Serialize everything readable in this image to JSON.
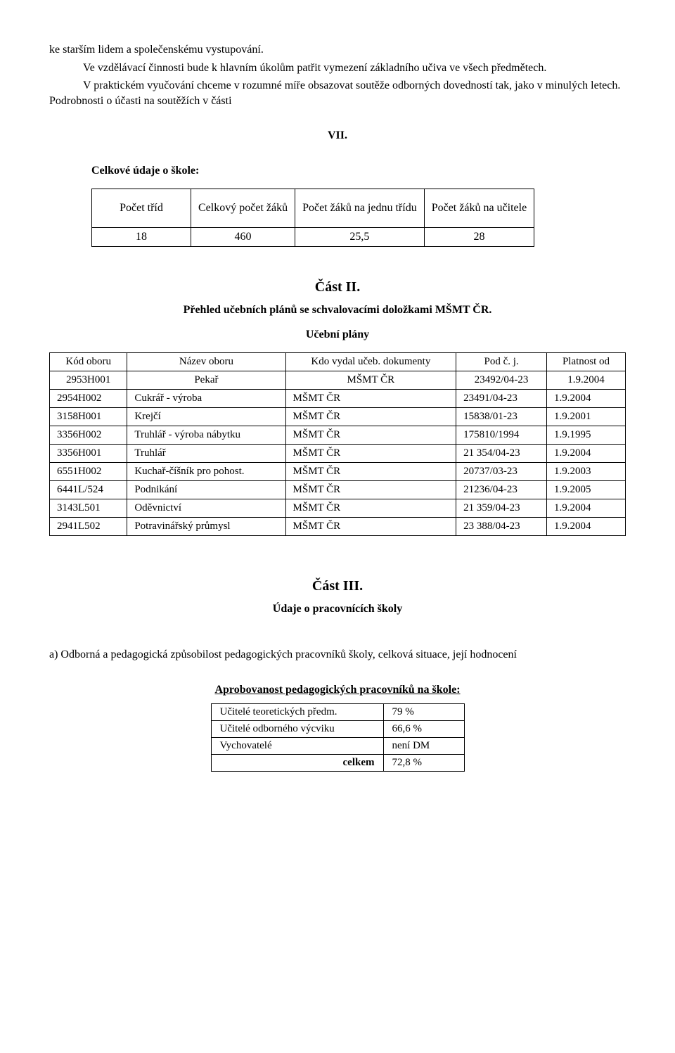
{
  "intro": {
    "p1": "ke starším lidem a společenskému vystupování.",
    "p2": "Ve vzdělávací činnosti bude k hlavním úkolům patřit vymezení základního učiva ve všech předmětech.",
    "p3": "V praktickém vyučování chceme v rozumné míře obsazovat soutěže odborných dovedností tak, jako  v minulých letech.  Podrobnosti  o účasti na soutěžích v části",
    "vii": "VII."
  },
  "stats": {
    "heading": "Celkové údaje o škole:",
    "headers": [
      "Počet tříd",
      "Celkový  počet žáků",
      "Počet žáků na jednu třídu",
      "Počet žáků na učitele"
    ],
    "row": [
      "18",
      "460",
      "25,5",
      "28"
    ]
  },
  "part2": {
    "title": "Část II.",
    "subtitle": "Přehled učebních plánů se schvalovacími doložkami MŠMT ČR.",
    "plans_label": "Učební plány",
    "columns": [
      "Kód oboru",
      "Název oboru",
      "Kdo vydal učeb. dokumenty",
      "Pod  č. j.",
      "Platnost od"
    ],
    "rows": [
      [
        "2953H001",
        "Pekař",
        "MŠMT ČR",
        "23492/04-23",
        "1.9.2004"
      ],
      [
        "2954H002",
        "Cukrář - výroba",
        "MŠMT ČR",
        "23491/04-23",
        "1.9.2004"
      ],
      [
        "3158H001",
        "Krejčí",
        "MŠMT ČR",
        "15838/01-23",
        "1.9.2001"
      ],
      [
        "3356H002",
        "Truhlář - výroba nábytku",
        "MŠMT ČR",
        "175810/1994",
        "1.9.1995"
      ],
      [
        "3356H001",
        "Truhlář",
        "MŠMT ČR",
        "21 354/04-23",
        "1.9.2004"
      ],
      [
        "6551H002",
        "Kuchař-číšník pro pohost.",
        "MŠMT ČR",
        "20737/03-23",
        "1.9.2003"
      ],
      [
        "6441L/524",
        "Podnikání",
        "MŠMT ČR",
        "21236/04-23",
        " 1.9.2005"
      ],
      [
        "3143L501",
        "Oděvnictví",
        "MŠMT ČR",
        "21 359/04-23",
        "1.9.2004"
      ],
      [
        "2941L502",
        "Potravinářský průmysl",
        "MŠMT ČR",
        "23 388/04-23",
        "1.9.2004"
      ]
    ]
  },
  "part3": {
    "title": "Část III.",
    "subtitle": "Údaje o pracovnících školy",
    "para_a": "a) Odborná a pedagogická způsobilost pedagogických pracovníků školy, celková situace, její hodnocení",
    "aprob_heading": "Aprobovanost pedagogických pracovníků na škole:",
    "aprob_rows": [
      [
        "Učitelé teoretických předm.",
        "79 %"
      ],
      [
        "Učitelé odborného výcviku",
        "66,6 %"
      ],
      [
        "Vychovatelé",
        "není DM"
      ],
      [
        "celkem",
        "72,8 %"
      ]
    ]
  }
}
